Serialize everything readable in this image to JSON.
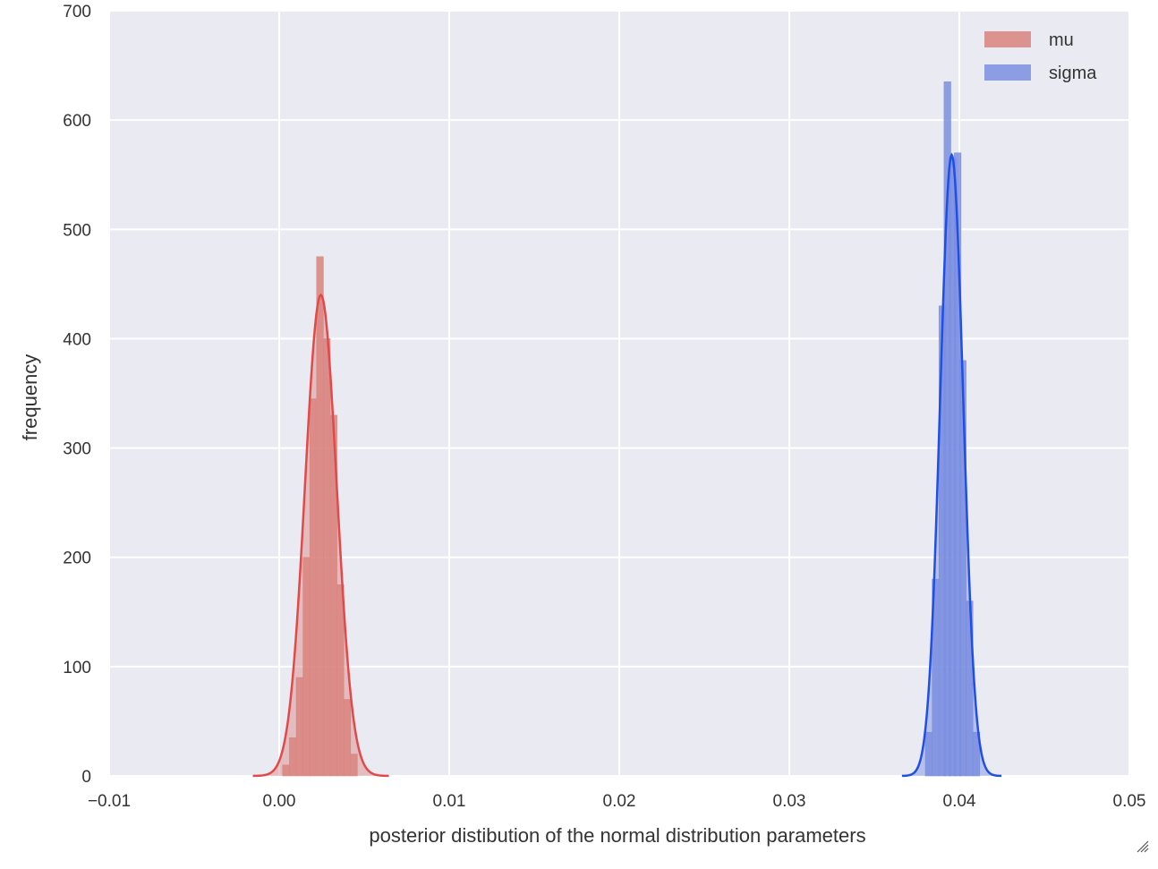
{
  "chart_data": {
    "type": "histogram",
    "xlabel": "posterior distibution of the normal distribution parameters",
    "ylabel": "frequency",
    "xlim": [
      -0.01,
      0.05
    ],
    "ylim": [
      0,
      700
    ],
    "x_ticks": [
      "−0.01",
      "0.00",
      "0.01",
      "0.02",
      "0.03",
      "0.04",
      "0.05"
    ],
    "x_tick_values": [
      -0.01,
      0.0,
      0.01,
      0.02,
      0.03,
      0.04,
      0.05
    ],
    "y_ticks": [
      "0",
      "100",
      "200",
      "300",
      "400",
      "500",
      "600",
      "700"
    ],
    "y_tick_values": [
      0,
      100,
      200,
      300,
      400,
      500,
      600,
      700
    ],
    "grid": true,
    "legend_position": "top-right",
    "series": [
      {
        "name": "mu",
        "color": "#e24a4a",
        "fill": "#d9847f",
        "kde_mean": 0.00245,
        "kde_std": 0.00093,
        "kde_peak": 440,
        "bins": [
          {
            "x": 0.0004,
            "y": 10
          },
          {
            "x": 0.0008,
            "y": 35
          },
          {
            "x": 0.0012,
            "y": 90
          },
          {
            "x": 0.0016,
            "y": 200
          },
          {
            "x": 0.002,
            "y": 345
          },
          {
            "x": 0.0024,
            "y": 475
          },
          {
            "x": 0.0028,
            "y": 400
          },
          {
            "x": 0.0032,
            "y": 330
          },
          {
            "x": 0.0036,
            "y": 175
          },
          {
            "x": 0.004,
            "y": 70
          },
          {
            "x": 0.0044,
            "y": 20
          }
        ]
      },
      {
        "name": "sigma",
        "color": "#1f4fe6",
        "fill": "#7b8fe0",
        "kde_mean": 0.03955,
        "kde_std": 0.00068,
        "kde_peak": 568,
        "bins": [
          {
            "x": 0.0382,
            "y": 40
          },
          {
            "x": 0.0386,
            "y": 180
          },
          {
            "x": 0.039,
            "y": 430
          },
          {
            "x": 0.0393,
            "y": 635
          },
          {
            "x": 0.0396,
            "y": 565
          },
          {
            "x": 0.0399,
            "y": 570
          },
          {
            "x": 0.0402,
            "y": 380
          },
          {
            "x": 0.0406,
            "y": 160
          },
          {
            "x": 0.041,
            "y": 40
          }
        ]
      }
    ]
  }
}
